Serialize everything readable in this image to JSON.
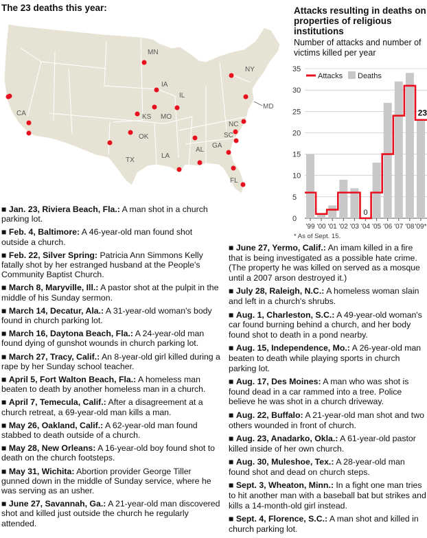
{
  "map": {
    "title": "The 23 deaths this year:",
    "state_labels": [
      "MN",
      "NY",
      "IA",
      "IL",
      "MD",
      "CA",
      "KS",
      "MO",
      "NC",
      "SC",
      "OK",
      "GA",
      "AL",
      "TX",
      "LA",
      "FL"
    ],
    "land_color": "#e6e3d5",
    "dot_color": "#e8101e"
  },
  "chart_data": {
    "type": "bar",
    "title": "Attacks resulting in deaths on properties of religious institutions",
    "subtitle": "Number of attacks and number of victims killed per year",
    "categories": [
      "'99",
      "'00",
      "'01",
      "'02",
      "'03",
      "'04",
      "'05",
      "'06",
      "'07",
      "'08",
      "'09*"
    ],
    "series": [
      {
        "name": "Attacks",
        "kind": "step-line",
        "color": "#e8101e",
        "values": [
          6,
          1,
          2,
          6,
          6,
          0,
          6,
          15,
          24,
          31,
          23
        ]
      },
      {
        "name": "Deaths",
        "kind": "bar",
        "color": "#c8c8c8",
        "values": [
          15,
          1,
          3,
          9,
          7,
          0,
          13,
          27,
          32,
          34,
          23
        ]
      }
    ],
    "annotations": [
      "0",
      "23"
    ],
    "ylim": [
      0,
      35
    ],
    "yticks": [
      "0",
      "5",
      "10",
      "15",
      "20",
      "25",
      "30",
      "35"
    ],
    "grid": true,
    "legend": "top-left",
    "footnote": "* As of Sept. 15."
  },
  "left_entries": [
    {
      "date": "Jan. 23, Riviera Beach, Fla.:",
      "text": "A man shot in a church parking lot."
    },
    {
      "date": "Feb. 4, Baltimore:",
      "text": "A 46-year-old man found shot outside a church."
    },
    {
      "date": "Feb. 22, Silver Spring:",
      "text": "Patricia Ann Simmons Kelly fatally shot by her estranged husband at the People's Community Baptist Church."
    },
    {
      "date": "March 8, Maryville, Ill.:",
      "text": "A pastor shot at the pulpit in the middle of his Sunday sermon."
    },
    {
      "date": "March 14, Decatur, Ala.:",
      "text": "A 31-year-old woman's body found in church parking lot."
    },
    {
      "date": "March 16, Daytona Beach, Fla.:",
      "text": "A 24-year-old man found dying of gunshot wounds in church parking lot."
    },
    {
      "date": "March 27, Tracy, Calif.:",
      "text": "An 8-year-old girl killed during a rape by her Sunday school teacher."
    },
    {
      "date": "April 5, Fort Walton Beach, Fla.:",
      "text": "A homeless man beaten to death by another homeless man in a church."
    },
    {
      "date": "April 7, Temecula, Calif.:",
      "text": "After a disagreement at a church retreat, a 69-year-old man kills a man."
    },
    {
      "date": "May 26, Oakland, Calif.:",
      "text": "A 62-year-old man found stabbed to death outside of a church."
    },
    {
      "date": "May 28, New Orleans:",
      "text": "A 16-year-old boy found shot to death on the church footsteps."
    },
    {
      "date": "May 31, Wichita:",
      "text": "Abortion provider George Tiller gunned down in the middle of Sunday service, where he was serving as an usher."
    },
    {
      "date": "June 27, Savannah, Ga.:",
      "text": "A 21-year-old man discovered shot and killed just outside the church he regularly attended."
    }
  ],
  "right_entries": [
    {
      "date": "June 27, Yermo, Calif.:",
      "text": "An imam killed in a fire that is being investigated as a possible hate crime. (The property he was killed on served as a mosque until a 2007 arson destroyed it.)"
    },
    {
      "date": "July 28, Raleigh, N.C.:",
      "text": "A homeless woman slain and left in a church's shrubs."
    },
    {
      "date": "Aug. 1, Charleston, S.C.:",
      "text": "A 49-year-old woman's car found burning behind a church, and her body found shot to death in a pond nearby."
    },
    {
      "date": "Aug. 15, Independence, Mo.:",
      "text": "A 26-year-old man beaten to death while playing sports in church parking lot."
    },
    {
      "date": "Aug. 17, Des Moines:",
      "text": "A man who was shot is found dead in a car rammed into a tree. Police believe he was shot in a church driveway."
    },
    {
      "date": "Aug. 22, Buffalo:",
      "text": "A 21-year-old man shot and two others wounded in front of church."
    },
    {
      "date": "Aug. 23, Anadarko, Okla.:",
      "text": "A 61-year-old pastor killed inside of her own church."
    },
    {
      "date": "Aug. 30, Muleshoe, Tex.:",
      "text": "A 28-year-old man found shot and dead on church steps."
    },
    {
      "date": "Sept. 3, Wheaton, Minn.:",
      "text": "In a fight one man tries to hit another man with a baseball bat but strikes and kills a 14-month-old girl instead."
    },
    {
      "date": "Sept. 4, Florence, S.C.:",
      "text": "A man shot and killed in church parking lot."
    }
  ]
}
